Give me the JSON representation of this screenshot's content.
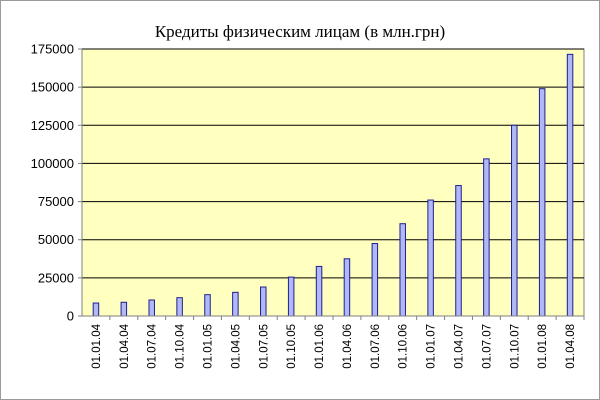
{
  "chart_data": {
    "type": "bar",
    "title": "Кредиты физическим лицам (в млн.грн)",
    "xlabel": "",
    "ylabel": "",
    "ylim": [
      0,
      175000
    ],
    "yticks": [
      0,
      25000,
      50000,
      75000,
      100000,
      125000,
      150000,
      175000
    ],
    "ytick_labels": [
      "0",
      "25000",
      "50000",
      "75000",
      "100000",
      "125000",
      "150000",
      "175000"
    ],
    "grid": true,
    "legend": "none",
    "categories": [
      "01.01.04",
      "01.04.04",
      "01.07.04",
      "01.10.04",
      "01.01.05",
      "01.04.05",
      "01.07.05",
      "01.10.05",
      "01.01.06",
      "01.04.06",
      "01.07.06",
      "01.10.06",
      "01.01.07",
      "01.04.07",
      "01.07.07",
      "01.10.07",
      "01.01.08",
      "01.04.08"
    ],
    "values": [
      8500,
      9000,
      10500,
      12000,
      14000,
      15500,
      19000,
      25500,
      32500,
      37500,
      47500,
      60500,
      76000,
      85500,
      103000,
      125000,
      149000,
      171500
    ],
    "colors": {
      "plot_background": "#FFFFC0",
      "bar_fill": "#B0B8F8",
      "bar_stroke": "#1F1F8F",
      "grid": "#000000"
    }
  }
}
